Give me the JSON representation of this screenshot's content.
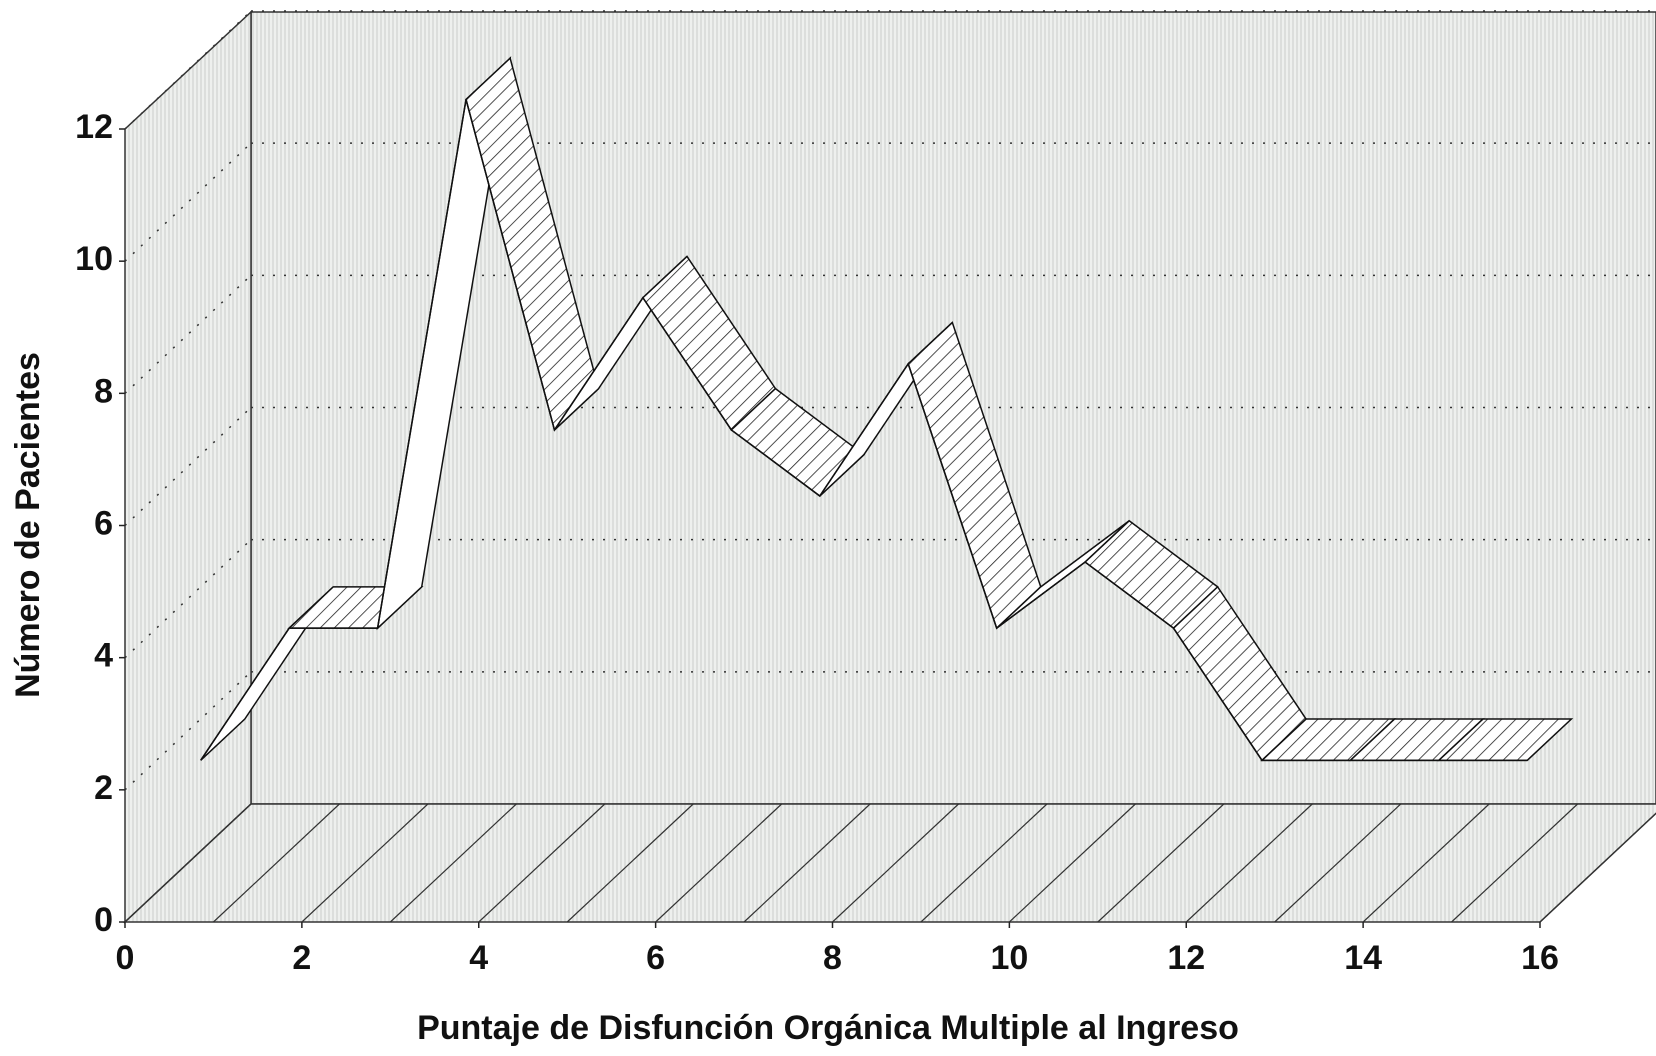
{
  "chart_data": {
    "type": "line3d",
    "xlabel": "Puntaje de Disfunción Orgánica Multiple al Ingreso",
    "ylabel": "Número de Pacientes",
    "x": [
      1,
      2,
      3,
      4,
      5,
      6,
      7,
      8,
      9,
      10,
      11,
      12,
      13,
      14,
      15,
      16
    ],
    "values": [
      2,
      4,
      4,
      12,
      7,
      9,
      7,
      6,
      8,
      4,
      5,
      4,
      2,
      2,
      2,
      2
    ],
    "color": "#ffffff",
    "xlim": [
      0,
      16
    ],
    "xticks": [
      0,
      2,
      4,
      6,
      8,
      10,
      12,
      14,
      16
    ],
    "ylim": [
      0,
      12
    ],
    "yticks": [
      0,
      2,
      4,
      6,
      8,
      10,
      12
    ],
    "grid": true
  }
}
